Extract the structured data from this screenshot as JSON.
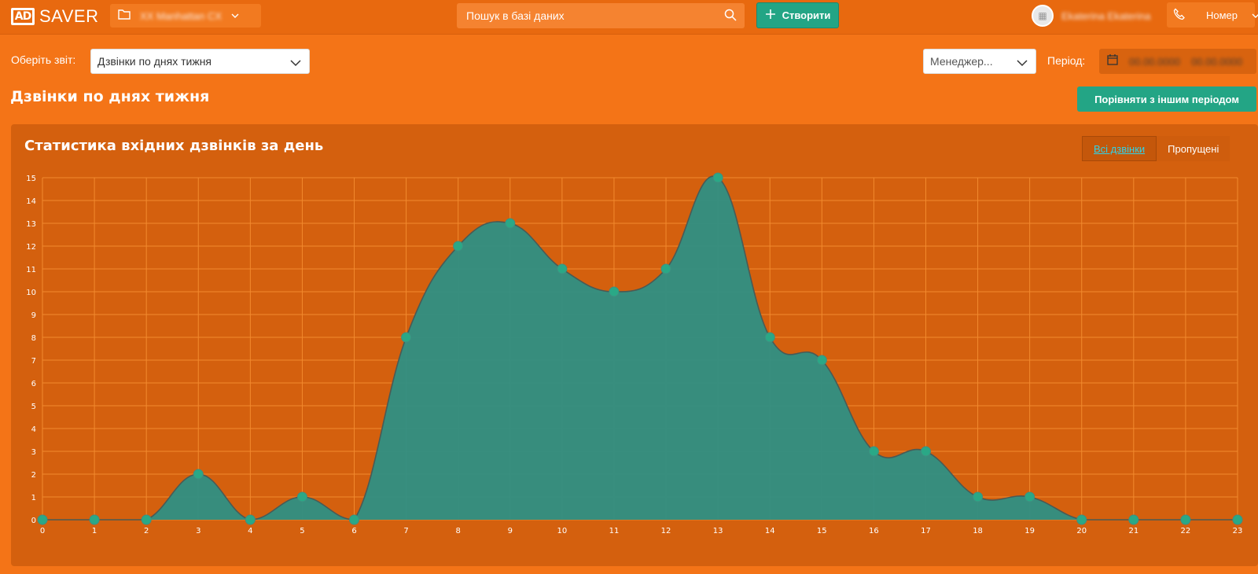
{
  "header": {
    "logo_mark": "AD",
    "logo_text": "SAVER",
    "project_value": "XX Manhattan CX",
    "search_placeholder": "Пошук в базі даних",
    "create_label": "Створити",
    "user_name": "Ekaterina Ekaterina",
    "number_label": "Номер"
  },
  "filters": {
    "report_label": "Оберіть звіт:",
    "report_value": "Дзвінки по днях тижня",
    "manager_value": "Менеджер...",
    "period_label": "Період:",
    "period_from": "00.00.0000",
    "period_to": "00.00.0000"
  },
  "page": {
    "title": "Дзвінки по днях тижня",
    "compare_label": "Порівняти з іншим періодом"
  },
  "panel": {
    "title": "Статистика вхідних дзвінків за день",
    "toggles": [
      {
        "label": "Всі дзвінки",
        "active": true
      },
      {
        "label": "Пропущені",
        "active": false
      }
    ]
  },
  "colors": {
    "background": "#f47417",
    "panel": "#d4600e",
    "grid": "#f28a2e",
    "area_fill": "#2e8f84",
    "line": "#4a5a55",
    "point": "#2aa886"
  },
  "chart_data": {
    "type": "area",
    "title": "Статистика вхідних дзвінків за день",
    "xlabel": "",
    "ylabel": "",
    "x": [
      0,
      1,
      2,
      3,
      4,
      5,
      6,
      7,
      8,
      9,
      10,
      11,
      12,
      13,
      14,
      15,
      16,
      17,
      18,
      19,
      20,
      21,
      22,
      23
    ],
    "series": [
      {
        "values": [
          0,
          0,
          0,
          2,
          0,
          1,
          0,
          8,
          12,
          13,
          11,
          10,
          11,
          15,
          8,
          7,
          3,
          3,
          1,
          1,
          0,
          0,
          0,
          0
        ]
      }
    ],
    "ylim": [
      0,
      15
    ],
    "yticks": [
      0,
      1,
      2,
      3,
      4,
      5,
      6,
      7,
      8,
      9,
      10,
      11,
      12,
      13,
      14,
      15
    ],
    "grid": true,
    "legend": "none"
  }
}
